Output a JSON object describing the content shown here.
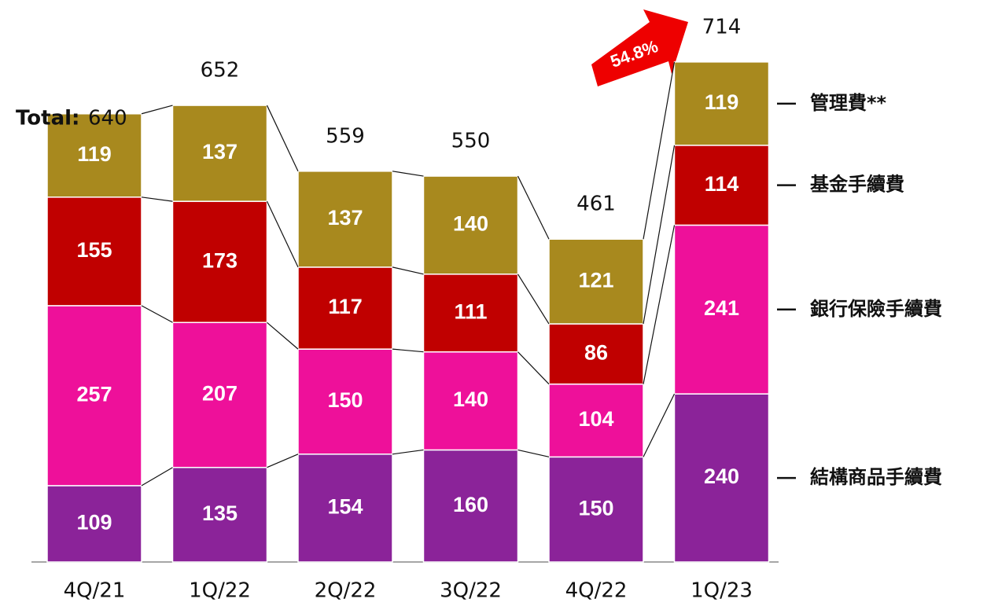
{
  "chart_data": {
    "type": "stacked_bar",
    "categories": [
      "4Q/21",
      "1Q/22",
      "2Q/22",
      "3Q/22",
      "4Q/22",
      "1Q/23"
    ],
    "series": [
      {
        "name": "結構商品手續費",
        "color": "#8b2399",
        "values": [
          109,
          135,
          154,
          160,
          150,
          240
        ]
      },
      {
        "name": "銀行保險手續費",
        "color": "#ee109a",
        "values": [
          257,
          207,
          150,
          140,
          104,
          241
        ]
      },
      {
        "name": "基金手續費",
        "color": "#c00000",
        "values": [
          155,
          173,
          117,
          111,
          86,
          114
        ]
      },
      {
        "name": "管理費**",
        "color": "#a8891e",
        "values": [
          119,
          137,
          137,
          140,
          121,
          119
        ]
      }
    ],
    "total_label": "Total:",
    "totals": [
      640,
      652,
      559,
      550,
      461,
      714
    ],
    "annotation": "54.8%"
  }
}
